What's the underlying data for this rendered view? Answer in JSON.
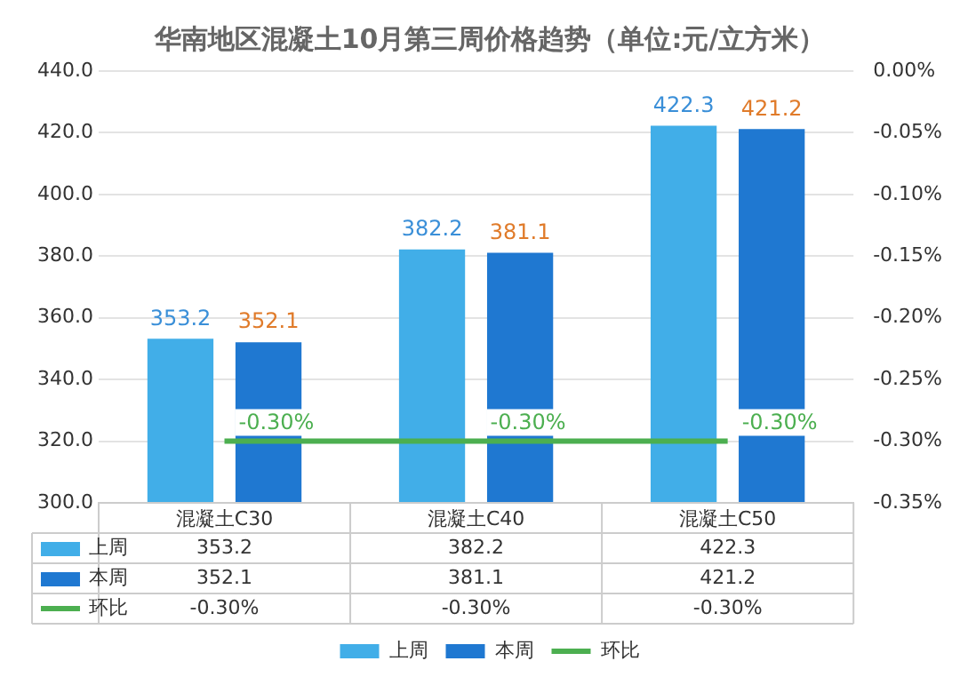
{
  "chart_data": {
    "type": "bar",
    "title": "华南地区混凝土10月第三周价格趋势（单位:元/立方米）",
    "categories": [
      "混凝土C30",
      "混凝土C40",
      "混凝土C50"
    ],
    "series": [
      {
        "name": "上周",
        "color": "#41aee8",
        "values": [
          353.2,
          382.2,
          422.3
        ],
        "value_labels": [
          "353.2",
          "382.2",
          "422.3"
        ]
      },
      {
        "name": "本周",
        "color": "#1f78d1",
        "values": [
          352.1,
          381.1,
          421.2
        ],
        "value_labels": [
          "352.1",
          "381.1",
          "421.2"
        ]
      },
      {
        "name": "环比",
        "type": "line",
        "axis": "y2",
        "color": "#4caf50",
        "values": [
          -0.3,
          -0.3,
          -0.3
        ],
        "value_labels": [
          "-0.30%",
          "-0.30%",
          "-0.30%"
        ]
      }
    ],
    "ylim": [
      300,
      440
    ],
    "yticks": [
      {
        "value": 300,
        "label": "300.0"
      },
      {
        "value": 320,
        "label": "320.0"
      },
      {
        "value": 340,
        "label": "340.0"
      },
      {
        "value": 360,
        "label": "360.0"
      },
      {
        "value": 380,
        "label": "380.0"
      },
      {
        "value": 400,
        "label": "400.0"
      },
      {
        "value": 420,
        "label": "420.0"
      },
      {
        "value": 440,
        "label": "440.0"
      }
    ],
    "y2lim": [
      -0.35,
      0
    ],
    "y2ticks": [
      {
        "value": 0,
        "label": "0.00%"
      },
      {
        "value": -0.05,
        "label": "-0.05%"
      },
      {
        "value": -0.1,
        "label": "-0.10%"
      },
      {
        "value": -0.15,
        "label": "-0.15%"
      },
      {
        "value": -0.2,
        "label": "-0.20%"
      },
      {
        "value": -0.25,
        "label": "-0.25%"
      },
      {
        "value": -0.3,
        "label": "-0.30%"
      },
      {
        "value": -0.35,
        "label": "-0.35%"
      }
    ],
    "grid": "y",
    "legend": "bottom",
    "marker": "none"
  }
}
